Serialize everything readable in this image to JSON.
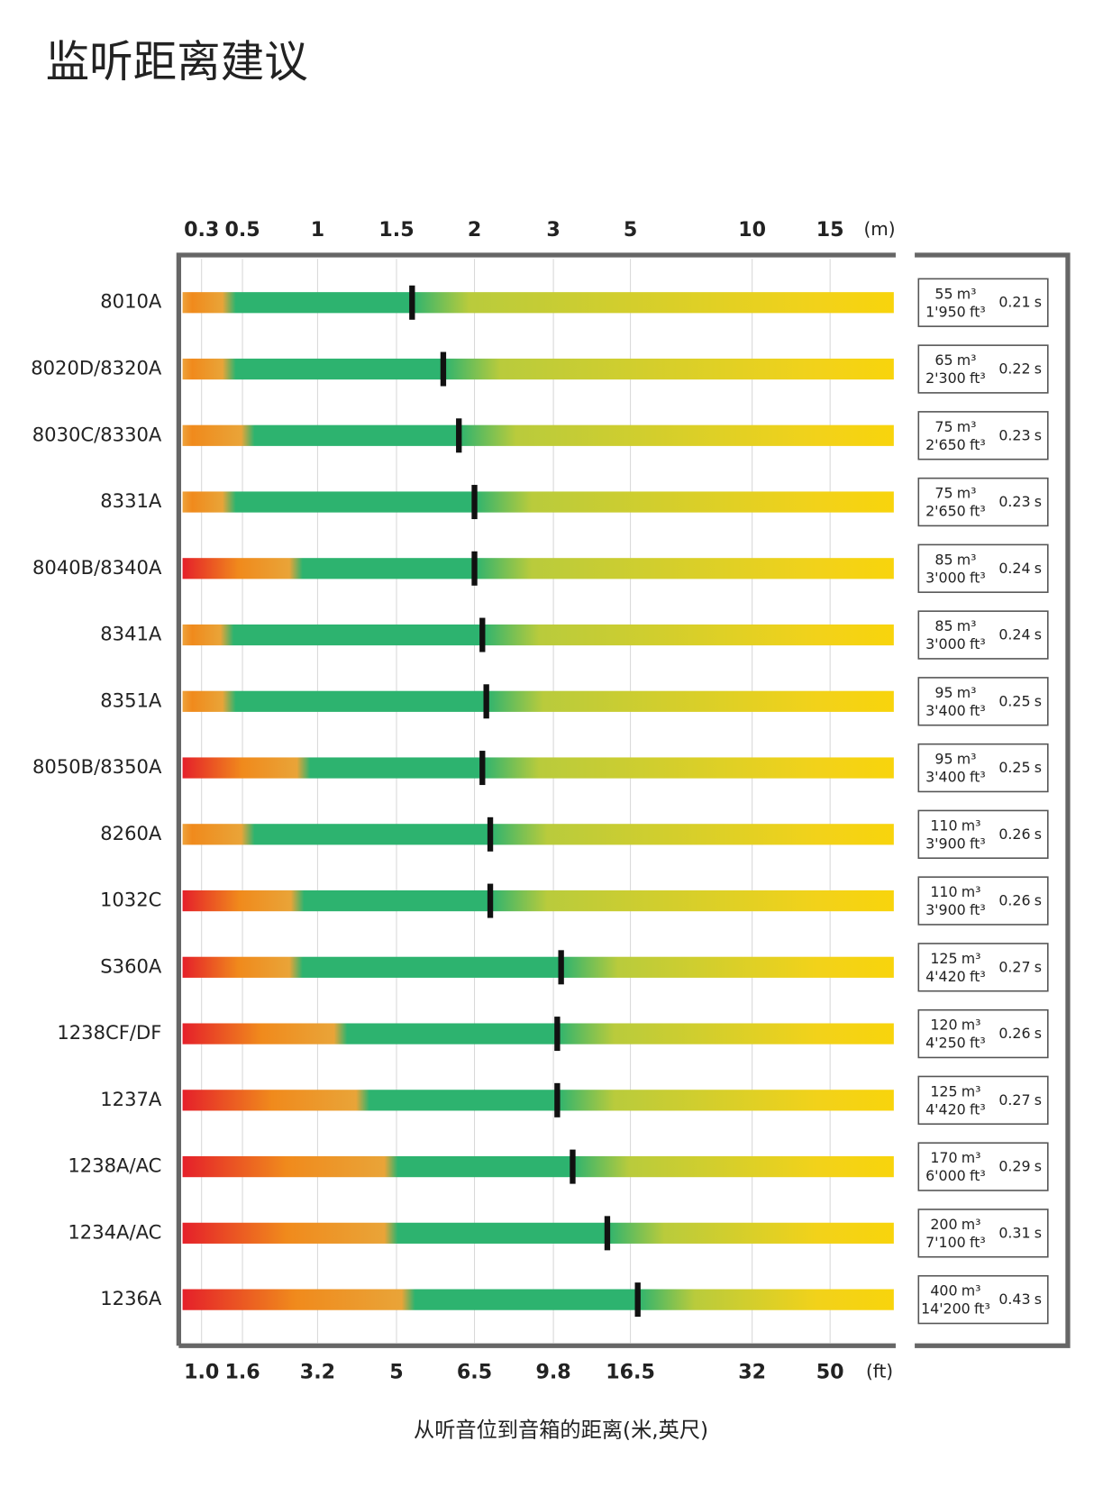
{
  "title": "监听距离建议",
  "chart_data": {
    "type": "distance-bar",
    "x_unit_top": "(m)",
    "x_unit_bottom": "(ft)",
    "xticks": [
      0.3,
      0.5,
      1,
      1.5,
      2,
      3,
      5,
      10,
      15
    ],
    "xticks_ft": [
      {
        "value": 1,
        "label": "1.0"
      },
      1.6,
      3.2,
      5,
      6.5,
      9.8,
      16.5,
      32,
      50
    ],
    "xlabel": "从听音位到音箱的距离(米,英尺)",
    "categories": [
      "8010A",
      "8020D/8320A",
      "8030C/8330A",
      "8331A",
      "8040B/8340A",
      "8341A",
      "8351A",
      "8050B/8350A",
      "8260A",
      "1032C",
      "S360A",
      "1238CF/DF",
      "1237A",
      "1238A/AC",
      "1234A/AC",
      "1236A"
    ],
    "values": [
      1.6,
      1.8,
      1.9,
      2.0,
      2.0,
      2.1,
      2.15,
      2.1,
      2.2,
      2.2,
      3.2,
      3.1,
      3.1,
      3.5,
      4.4,
      5.3
    ],
    "near_field": [
      0.43,
      0.43,
      0.53,
      0.43,
      0.85,
      0.42,
      0.43,
      0.9,
      0.53,
      0.86,
      0.85,
      1.14,
      1.28,
      1.46,
      1.46,
      1.57
    ],
    "volume_m3": {
      "unit": "m³",
      "values": [
        55,
        65,
        75,
        75,
        85,
        85,
        95,
        95,
        110,
        110,
        125,
        120,
        125,
        170,
        200,
        400
      ]
    },
    "volume_ft3": {
      "unit": "ft³",
      "values": [
        1950,
        2300,
        2650,
        2650,
        3000,
        3000,
        3400,
        3400,
        3900,
        3900,
        4420,
        4250,
        4420,
        6000,
        7100,
        14200
      ],
      "value_labels": [
        "1'950",
        "2'300",
        "2'650",
        "2'650",
        "3'000",
        "3'000",
        "3'400",
        "3'400",
        "3'900",
        "3'900",
        "4'420",
        "4'250",
        "4'420",
        "6'000",
        "7'100",
        "14'200"
      ]
    },
    "reverb_time": {
      "unit": "s",
      "values": [
        0.21,
        0.22,
        0.23,
        0.23,
        0.24,
        0.24,
        0.25,
        0.25,
        0.26,
        0.26,
        0.27,
        0.26,
        0.27,
        0.29,
        0.31,
        0.43
      ]
    }
  }
}
